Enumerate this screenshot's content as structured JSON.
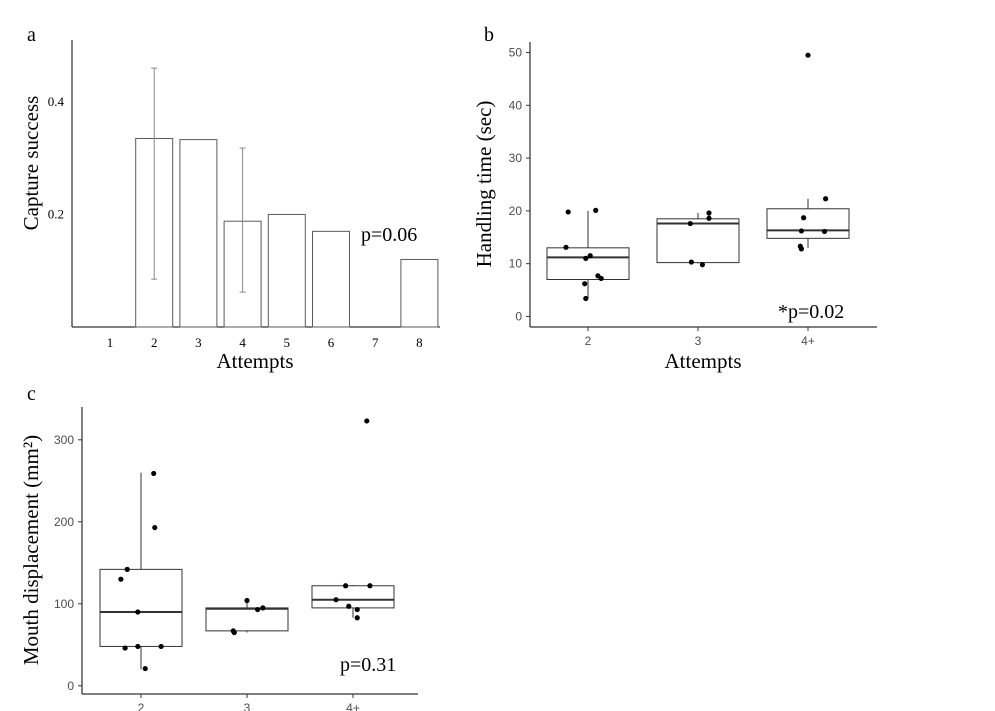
{
  "panels": {
    "a": {
      "label": "a"
    },
    "b": {
      "label": "b"
    },
    "c": {
      "label": "c"
    }
  },
  "chart_data": [
    {
      "type": "bar",
      "panel": "a",
      "categories": [
        "1",
        "2",
        "3",
        "4",
        "5",
        "6",
        "7",
        "8"
      ],
      "values": [
        0,
        0.335,
        0.333,
        0.188,
        0.2,
        0.17,
        0,
        0.12
      ],
      "error_bars": [
        null,
        [
          0.085,
          0.46
        ],
        null,
        [
          0.062,
          0.318
        ],
        null,
        null,
        null,
        null
      ],
      "xlabel": "Attempts",
      "ylabel": "Capture success",
      "ylim": [
        0,
        0.51
      ],
      "yticks": [
        0.2,
        0.4
      ],
      "ytick_labels": [
        "0.2",
        "0.4"
      ],
      "annotation": "p=0.06",
      "grid": false
    },
    {
      "type": "box",
      "panel": "b",
      "categories": [
        "2",
        "3",
        "4+"
      ],
      "boxes": [
        {
          "whisker_low": 3.5,
          "q1": 7.0,
          "median": 11.2,
          "q3": 13.0,
          "whisker_high": 20.0
        },
        {
          "whisker_low": 10.0,
          "q1": 10.2,
          "median": 17.6,
          "q3": 18.5,
          "whisker_high": 19.6
        },
        {
          "whisker_low": 13.0,
          "q1": 14.8,
          "median": 16.3,
          "q3": 20.4,
          "whisker_high": 22.3
        }
      ],
      "points": [
        {
          "x": "2",
          "y": 19.8,
          "j": -0.18
        },
        {
          "x": "2",
          "y": 20.1,
          "j": 0.07
        },
        {
          "x": "2",
          "y": 13.1,
          "j": -0.2
        },
        {
          "x": "2",
          "y": 11.5,
          "j": 0.02
        },
        {
          "x": "2",
          "y": 11.0,
          "j": -0.02
        },
        {
          "x": "2",
          "y": 7.7,
          "j": 0.09
        },
        {
          "x": "2",
          "y": 7.2,
          "j": 0.12
        },
        {
          "x": "2",
          "y": 6.2,
          "j": -0.03
        },
        {
          "x": "2",
          "y": 3.4,
          "j": -0.02
        },
        {
          "x": "3",
          "y": 17.6,
          "j": -0.07
        },
        {
          "x": "3",
          "y": 19.6,
          "j": 0.1
        },
        {
          "x": "3",
          "y": 18.6,
          "j": 0.1
        },
        {
          "x": "3",
          "y": 10.3,
          "j": -0.06
        },
        {
          "x": "3",
          "y": 9.8,
          "j": 0.04
        },
        {
          "x": "4+",
          "y": 49.5,
          "j": 0.0
        },
        {
          "x": "4+",
          "y": 22.3,
          "j": 0.16
        },
        {
          "x": "4+",
          "y": 18.7,
          "j": -0.04
        },
        {
          "x": "4+",
          "y": 16.2,
          "j": -0.06
        },
        {
          "x": "4+",
          "y": 16.1,
          "j": 0.15
        },
        {
          "x": "4+",
          "y": 13.3,
          "j": -0.07
        },
        {
          "x": "4+",
          "y": 12.8,
          "j": -0.06
        }
      ],
      "xlabel": "Attempts",
      "ylabel": "Handling time (sec)",
      "ylim": [
        -2,
        52
      ],
      "yticks": [
        0,
        10,
        20,
        30,
        40,
        50
      ],
      "ytick_labels": [
        "0",
        "10",
        "20",
        "30",
        "40",
        "50"
      ],
      "annotation": "*p=0.02",
      "grid": false
    },
    {
      "type": "box",
      "panel": "c",
      "categories": [
        "2",
        "3",
        "4+"
      ],
      "boxes": [
        {
          "whisker_low": 20,
          "q1": 48,
          "median": 90,
          "q3": 142,
          "whisker_high": 260
        },
        {
          "whisker_low": 65,
          "q1": 67,
          "median": 94,
          "q3": 95,
          "whisker_high": 104
        },
        {
          "whisker_low": 83,
          "q1": 95,
          "median": 105,
          "q3": 122,
          "whisker_high": 123
        }
      ],
      "points": [
        {
          "x": "2",
          "y": 259,
          "j": 0.12
        },
        {
          "x": "2",
          "y": 193,
          "j": 0.13
        },
        {
          "x": "2",
          "y": 142,
          "j": -0.13
        },
        {
          "x": "2",
          "y": 130,
          "j": -0.19
        },
        {
          "x": "2",
          "y": 90,
          "j": -0.03
        },
        {
          "x": "2",
          "y": 48,
          "j": -0.03
        },
        {
          "x": "2",
          "y": 48,
          "j": 0.19
        },
        {
          "x": "2",
          "y": 46,
          "j": -0.15
        },
        {
          "x": "2",
          "y": 21,
          "j": 0.04
        },
        {
          "x": "3",
          "y": 104,
          "j": 0.0
        },
        {
          "x": "3",
          "y": 95,
          "j": 0.15
        },
        {
          "x": "3",
          "y": 93,
          "j": 0.1
        },
        {
          "x": "3",
          "y": 67,
          "j": -0.13
        },
        {
          "x": "3",
          "y": 65,
          "j": -0.12
        },
        {
          "x": "4+",
          "y": 323,
          "j": 0.13
        },
        {
          "x": "4+",
          "y": 122,
          "j": -0.07
        },
        {
          "x": "4+",
          "y": 122,
          "j": 0.16
        },
        {
          "x": "4+",
          "y": 105,
          "j": -0.16
        },
        {
          "x": "4+",
          "y": 97,
          "j": -0.04
        },
        {
          "x": "4+",
          "y": 93,
          "j": 0.04
        },
        {
          "x": "4+",
          "y": 83,
          "j": 0.04
        }
      ],
      "xlabel": "",
      "ylabel": "Mouth displacement (mm²)",
      "ylim": [
        -10,
        340
      ],
      "yticks": [
        0,
        100,
        200,
        300
      ],
      "ytick_labels": [
        "0",
        "100",
        "200",
        "300"
      ],
      "annotation": "p=0.31",
      "grid": false
    }
  ]
}
